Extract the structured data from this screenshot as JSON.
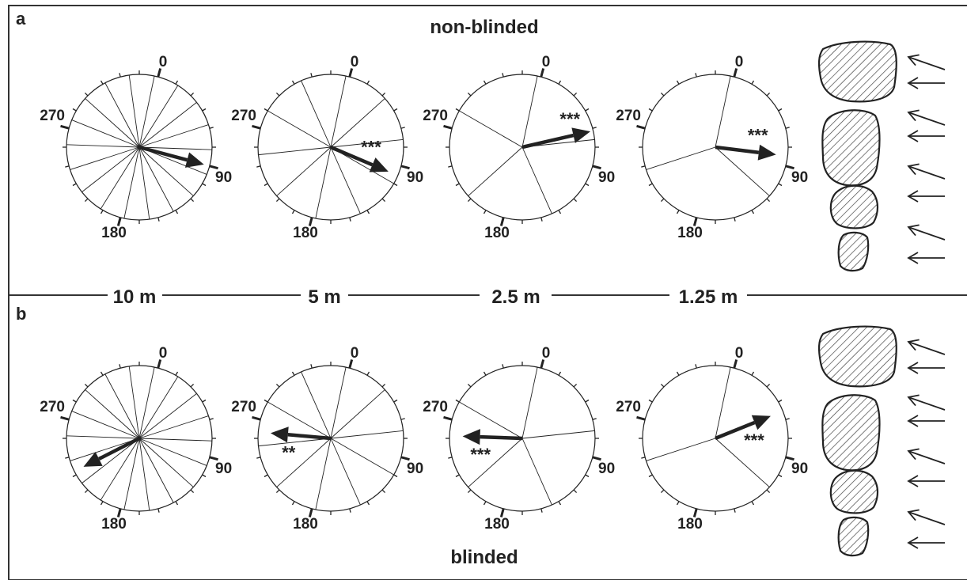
{
  "panels": [
    {
      "letter": "a",
      "title": "non-blinded",
      "circles": [
        {
          "id": "10m",
          "sectors": 18,
          "mean_deg": 105,
          "arrow_len": 0.92,
          "stars": "",
          "stars_pos": "none"
        },
        {
          "id": "5m",
          "sectors": 10,
          "mean_deg": 113,
          "arrow_len": 0.86,
          "stars": "***",
          "stars_pos": "above"
        },
        {
          "id": "2.5m",
          "sectors": 5,
          "mean_deg": 77,
          "arrow_len": 0.96,
          "stars": "***",
          "stars_pos": "above"
        },
        {
          "id": "1.25m",
          "sectors": 3,
          "mean_deg": 97,
          "arrow_len": 0.84,
          "stars": "***",
          "stars_pos": "above"
        }
      ]
    },
    {
      "letter": "b",
      "title": "blinded",
      "circles": [
        {
          "id": "10m",
          "sectors": 18,
          "mean_deg": 243,
          "arrow_len": 0.86,
          "stars": "",
          "stars_pos": "none"
        },
        {
          "id": "5m",
          "sectors": 10,
          "mean_deg": 275,
          "arrow_len": 0.83,
          "stars": "**",
          "stars_pos": "below"
        },
        {
          "id": "2.5m",
          "sectors": 5,
          "mean_deg": 272,
          "arrow_len": 0.82,
          "stars": "***",
          "stars_pos": "below"
        },
        {
          "id": "1.25m",
          "sectors": 3,
          "mean_deg": 68,
          "arrow_len": 0.82,
          "stars": "***",
          "stars_pos": "below"
        }
      ]
    }
  ],
  "axis_labels": {
    "top": "0",
    "right": "90",
    "bottom": "180",
    "left": "270"
  },
  "distance_labels": [
    "10 m",
    "5 m",
    "2.5 m",
    "1.25 m"
  ],
  "colors": {
    "ink": "#222222",
    "hatch": "#444444",
    "background": "#ffffff"
  }
}
